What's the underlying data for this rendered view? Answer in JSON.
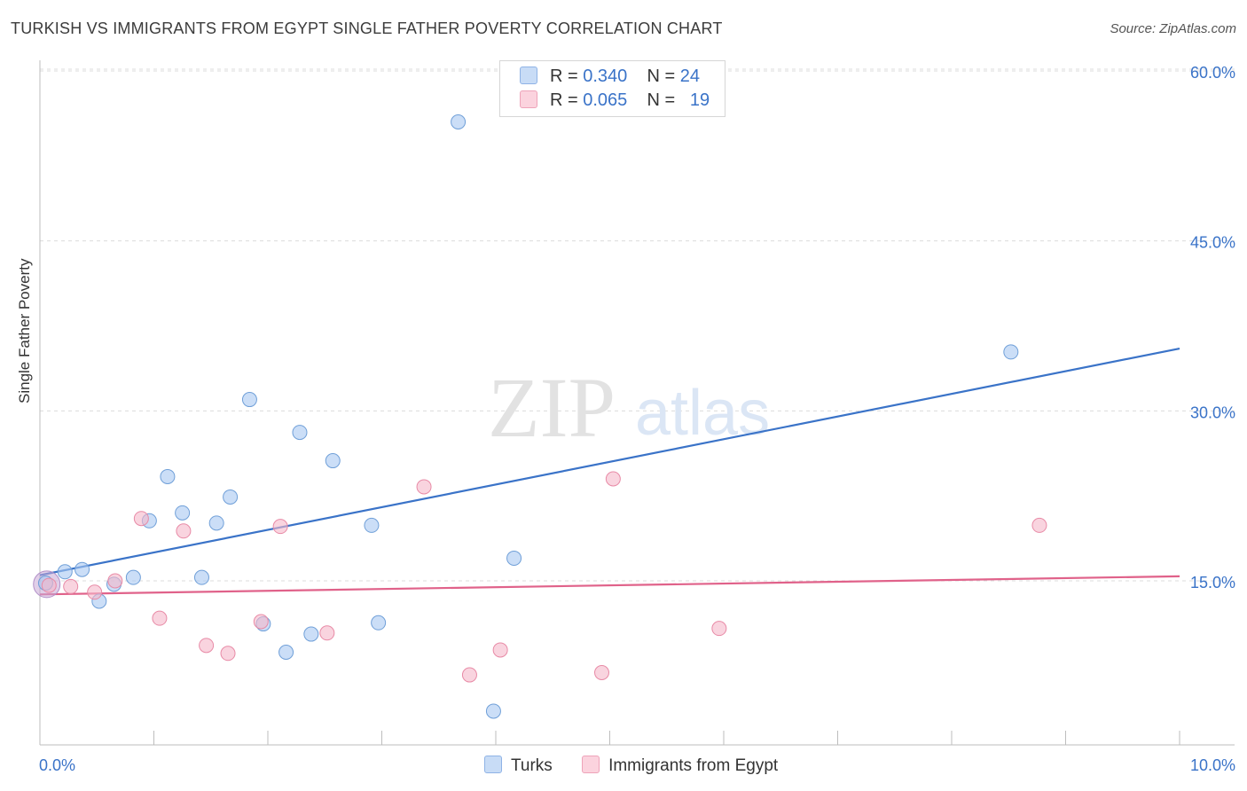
{
  "title": "TURKISH VS IMMIGRANTS FROM EGYPT SINGLE FATHER POVERTY CORRELATION CHART",
  "source": "Source: ZipAtlas.com",
  "watermark": {
    "zip": "ZIP",
    "atlas": "atlas"
  },
  "legend": {
    "rows": [
      {
        "r_label": "R = ",
        "r_value": "0.340",
        "n_label": "N = ",
        "n_value": "24",
        "color": "#a9c8f1"
      },
      {
        "r_label": "R = ",
        "r_value": "0.065",
        "n_label": "N = ",
        "n_value": "19",
        "color": "#f5b8c9"
      }
    ]
  },
  "bottom_legend": {
    "turks": "Turks",
    "egypt": "Immigrants from Egypt"
  },
  "chart_data": {
    "type": "scatter",
    "title": "TURKISH VS IMMIGRANTS FROM EGYPT SINGLE FATHER POVERTY CORRELATION CHART",
    "xlabel": "",
    "ylabel": "Single Father Poverty",
    "xlim": [
      0,
      10
    ],
    "ylim": [
      1.5,
      62
    ],
    "x_tick_labels": [
      "0.0%",
      "10.0%"
    ],
    "y_ticks": [
      15,
      30,
      45,
      60
    ],
    "y_tick_labels": [
      "15.0%",
      "30.0%",
      "45.0%",
      "60.0%"
    ],
    "grid": "horizontal dashed",
    "legend_position": "top-center",
    "series": [
      {
        "name": "Turks",
        "color": "#a9c8f1",
        "stroke": "#6f9fd8",
        "trend_color": "#3a73c8",
        "trend": {
          "x0": 0.0,
          "y0": 15.5,
          "x1": 10.0,
          "y1": 35.5
        },
        "points": [
          [
            0.05,
            14.8
          ],
          [
            0.22,
            15.8
          ],
          [
            0.37,
            16.0
          ],
          [
            0.52,
            13.2
          ],
          [
            0.65,
            14.7
          ],
          [
            0.82,
            15.3
          ],
          [
            0.96,
            20.3
          ],
          [
            1.12,
            24.2
          ],
          [
            1.25,
            21.0
          ],
          [
            1.42,
            15.3
          ],
          [
            1.55,
            20.1
          ],
          [
            1.67,
            22.4
          ],
          [
            1.84,
            31.0
          ],
          [
            1.96,
            11.2
          ],
          [
            2.16,
            8.7
          ],
          [
            2.28,
            28.1
          ],
          [
            2.38,
            10.3
          ],
          [
            2.57,
            25.6
          ],
          [
            2.91,
            19.9
          ],
          [
            2.97,
            11.3
          ],
          [
            3.67,
            55.5
          ],
          [
            3.98,
            3.5
          ],
          [
            4.16,
            17.0
          ],
          [
            8.52,
            35.2
          ]
        ]
      },
      {
        "name": "Immigrants from Egypt",
        "color": "#f5b8c9",
        "stroke": "#e88aa6",
        "trend_color": "#e0628a",
        "trend": {
          "x0": 0.0,
          "y0": 13.8,
          "x1": 10.0,
          "y1": 15.4
        },
        "points": [
          [
            0.08,
            14.6
          ],
          [
            0.27,
            14.5
          ],
          [
            0.48,
            14.0
          ],
          [
            0.66,
            15.0
          ],
          [
            0.89,
            20.5
          ],
          [
            1.05,
            11.7
          ],
          [
            1.26,
            19.4
          ],
          [
            1.46,
            9.3
          ],
          [
            1.65,
            8.6
          ],
          [
            1.94,
            11.4
          ],
          [
            2.11,
            19.8
          ],
          [
            2.52,
            10.4
          ],
          [
            3.37,
            23.3
          ],
          [
            3.77,
            6.7
          ],
          [
            4.04,
            8.9
          ],
          [
            4.93,
            6.9
          ],
          [
            5.03,
            24.0
          ],
          [
            5.96,
            10.8
          ],
          [
            8.77,
            19.9
          ]
        ]
      }
    ]
  }
}
